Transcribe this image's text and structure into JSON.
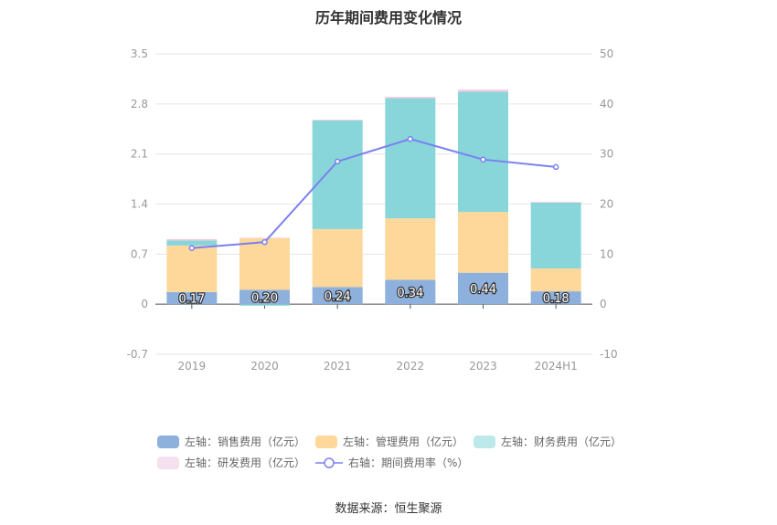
{
  "chart_data": {
    "type": "bar",
    "title": "历年期间费用变化情况",
    "categories": [
      "2019",
      "2020",
      "2021",
      "2022",
      "2023",
      "2024H1"
    ],
    "stacked": true,
    "left_axis": {
      "min": -0.7,
      "max": 3.5,
      "ticks": [
        "3.5",
        "2.8",
        "2.1",
        "1.4",
        "0.7",
        "0",
        "-0.7"
      ]
    },
    "right_axis": {
      "min": -10,
      "max": 50,
      "ticks": [
        "50",
        "40",
        "30",
        "20",
        "10",
        "0",
        "-10"
      ]
    },
    "grid": true,
    "series": [
      {
        "name": "左轴：销售费用（亿元）",
        "axis": "left",
        "color": "#8eb0dd",
        "values": [
          0.17,
          0.2,
          0.24,
          0.34,
          0.44,
          0.18
        ],
        "labels": [
          "0.17",
          "0.20",
          "0.24",
          "0.34",
          "0.44",
          "0.18"
        ]
      },
      {
        "name": "左轴：管理费用（亿元）",
        "axis": "left",
        "color": "#fdd89a",
        "values": [
          0.65,
          0.72,
          0.81,
          0.86,
          0.85,
          0.32
        ]
      },
      {
        "name": "左轴：财务费用（亿元）",
        "axis": "left",
        "color": "#88d6da",
        "values": [
          0.07,
          -0.02,
          1.52,
          1.68,
          1.68,
          0.92
        ]
      },
      {
        "name": "左轴：研发费用（亿元）",
        "axis": "left",
        "color": "#f4cbe0",
        "values": [
          0.02,
          0.01,
          0.01,
          0.02,
          0.03,
          0.01
        ]
      },
      {
        "name": "右轴：期间费用率（%）",
        "axis": "right",
        "type": "line",
        "color": "#7b80f0",
        "values": [
          11.2,
          12.4,
          28.5,
          33.0,
          28.9,
          27.4
        ]
      }
    ],
    "legend_position": "bottom"
  },
  "source_text": "数据来源：恒生聚源"
}
